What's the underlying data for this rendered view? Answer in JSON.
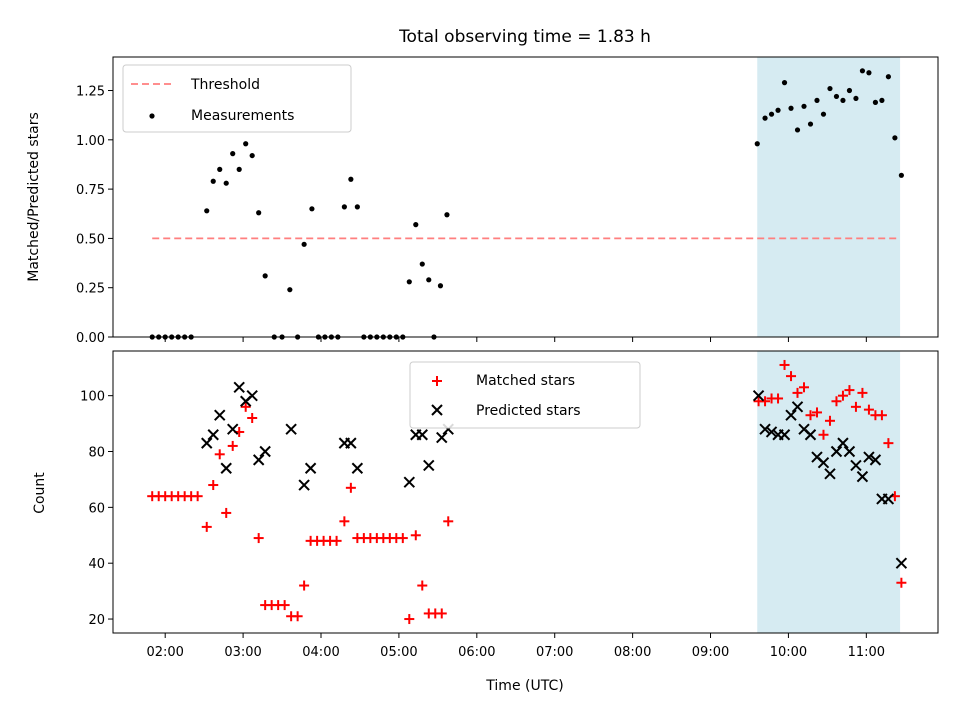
{
  "chart_data": [
    {
      "type": "scatter",
      "title": "Total observing time = 1.83 h",
      "xlabel": "",
      "ylabel": "Matched/Predicted stars",
      "ylim": [
        0.0,
        1.42
      ],
      "yticks": [
        "0.00",
        "0.25",
        "0.50",
        "0.75",
        "1.00",
        "1.25"
      ],
      "xlim_hours": [
        1.33,
        11.92
      ],
      "highlight_span": {
        "x_start": "09:36",
        "x_end": "11:26",
        "color": "#add8e6"
      },
      "threshold": {
        "name": "Threshold",
        "value": 0.5,
        "x_start": "01:50",
        "x_end": "11:26",
        "color": "#ff7f7f"
      },
      "legend": [
        "Threshold",
        "Measurements"
      ],
      "legend_position": "upper left",
      "series": [
        {
          "name": "Measurements",
          "color": "#000000",
          "points": [
            [
              "01:50",
              0.0
            ],
            [
              "01:55",
              0.0
            ],
            [
              "02:00",
              0.0
            ],
            [
              "02:05",
              0.0
            ],
            [
              "02:10",
              0.0
            ],
            [
              "02:15",
              0.0
            ],
            [
              "02:20",
              0.0
            ],
            [
              "02:32",
              0.64
            ],
            [
              "02:37",
              0.79
            ],
            [
              "02:42",
              0.85
            ],
            [
              "02:47",
              0.78
            ],
            [
              "02:52",
              0.93
            ],
            [
              "02:57",
              0.85
            ],
            [
              "03:02",
              0.98
            ],
            [
              "03:07",
              0.92
            ],
            [
              "03:12",
              0.63
            ],
            [
              "03:17",
              0.31
            ],
            [
              "03:24",
              0.0
            ],
            [
              "03:30",
              0.0
            ],
            [
              "03:36",
              0.24
            ],
            [
              "03:42",
              0.0
            ],
            [
              "03:47",
              0.47
            ],
            [
              "03:53",
              0.65
            ],
            [
              "03:58",
              0.0
            ],
            [
              "04:03",
              0.0
            ],
            [
              "04:08",
              0.0
            ],
            [
              "04:13",
              0.0
            ],
            [
              "04:18",
              0.66
            ],
            [
              "04:23",
              0.8
            ],
            [
              "04:28",
              0.66
            ],
            [
              "04:33",
              0.0
            ],
            [
              "04:38",
              0.0
            ],
            [
              "04:43",
              0.0
            ],
            [
              "04:48",
              0.0
            ],
            [
              "04:53",
              0.0
            ],
            [
              "04:58",
              0.0
            ],
            [
              "05:03",
              0.0
            ],
            [
              "05:08",
              0.28
            ],
            [
              "05:13",
              0.57
            ],
            [
              "05:18",
              0.37
            ],
            [
              "05:23",
              0.29
            ],
            [
              "05:27",
              0.0
            ],
            [
              "05:32",
              0.26
            ],
            [
              "05:37",
              0.62
            ],
            [
              "09:36",
              0.98
            ],
            [
              "09:42",
              1.11
            ],
            [
              "09:47",
              1.13
            ],
            [
              "09:52",
              1.15
            ],
            [
              "09:57",
              1.29
            ],
            [
              "10:02",
              1.16
            ],
            [
              "10:07",
              1.05
            ],
            [
              "10:12",
              1.17
            ],
            [
              "10:17",
              1.08
            ],
            [
              "10:22",
              1.2
            ],
            [
              "10:27",
              1.13
            ],
            [
              "10:32",
              1.26
            ],
            [
              "10:37",
              1.22
            ],
            [
              "10:42",
              1.2
            ],
            [
              "10:47",
              1.25
            ],
            [
              "10:52",
              1.21
            ],
            [
              "10:57",
              1.35
            ],
            [
              "11:02",
              1.34
            ],
            [
              "11:07",
              1.19
            ],
            [
              "11:12",
              1.2
            ],
            [
              "11:17",
              1.32
            ],
            [
              "11:22",
              1.01
            ],
            [
              "11:27",
              0.82
            ]
          ]
        }
      ]
    },
    {
      "type": "scatter",
      "title": "",
      "xlabel": "Time (UTC)",
      "ylabel": "Count",
      "ylim": [
        15,
        116
      ],
      "yticks": [
        "20",
        "40",
        "60",
        "80",
        "100"
      ],
      "xticks": [
        "02:00",
        "03:00",
        "04:00",
        "05:00",
        "06:00",
        "07:00",
        "08:00",
        "09:00",
        "10:00",
        "11:00"
      ],
      "xlim_hours": [
        1.33,
        11.92
      ],
      "highlight_span": {
        "x_start": "09:36",
        "x_end": "11:26",
        "color": "#add8e6"
      },
      "legend": [
        "Matched stars",
        "Predicted stars"
      ],
      "legend_position": "upper center",
      "series": [
        {
          "name": "Matched stars",
          "marker": "plus",
          "color": "#ff0000",
          "points": [
            [
              "01:50",
              64
            ],
            [
              "01:55",
              64
            ],
            [
              "02:00",
              64
            ],
            [
              "02:05",
              64
            ],
            [
              "02:10",
              64
            ],
            [
              "02:15",
              64
            ],
            [
              "02:20",
              64
            ],
            [
              "02:25",
              64
            ],
            [
              "02:32",
              53
            ],
            [
              "02:37",
              68
            ],
            [
              "02:42",
              79
            ],
            [
              "02:47",
              58
            ],
            [
              "02:52",
              82
            ],
            [
              "02:57",
              87
            ],
            [
              "03:02",
              96
            ],
            [
              "03:07",
              92
            ],
            [
              "03:12",
              49
            ],
            [
              "03:17",
              25
            ],
            [
              "03:22",
              25
            ],
            [
              "03:27",
              25
            ],
            [
              "03:32",
              25
            ],
            [
              "03:37",
              21
            ],
            [
              "03:42",
              21
            ],
            [
              "03:47",
              32
            ],
            [
              "03:52",
              48
            ],
            [
              "03:57",
              48
            ],
            [
              "04:02",
              48
            ],
            [
              "04:07",
              48
            ],
            [
              "04:12",
              48
            ],
            [
              "04:18",
              55
            ],
            [
              "04:23",
              67
            ],
            [
              "04:28",
              49
            ],
            [
              "04:33",
              49
            ],
            [
              "04:38",
              49
            ],
            [
              "04:43",
              49
            ],
            [
              "04:48",
              49
            ],
            [
              "04:53",
              49
            ],
            [
              "04:58",
              49
            ],
            [
              "05:03",
              49
            ],
            [
              "05:08",
              20
            ],
            [
              "05:13",
              50
            ],
            [
              "05:18",
              32
            ],
            [
              "05:23",
              22
            ],
            [
              "05:28",
              22
            ],
            [
              "05:33",
              22
            ],
            [
              "05:38",
              55
            ],
            [
              "09:37",
              98
            ],
            [
              "09:42",
              98
            ],
            [
              "09:47",
              99
            ],
            [
              "09:52",
              99
            ],
            [
              "09:57",
              111
            ],
            [
              "10:02",
              107
            ],
            [
              "10:07",
              101
            ],
            [
              "10:12",
              103
            ],
            [
              "10:17",
              93
            ],
            [
              "10:22",
              94
            ],
            [
              "10:27",
              86
            ],
            [
              "10:32",
              91
            ],
            [
              "10:37",
              98
            ],
            [
              "10:42",
              100
            ],
            [
              "10:47",
              102
            ],
            [
              "10:52",
              96
            ],
            [
              "10:57",
              101
            ],
            [
              "11:02",
              95
            ],
            [
              "11:07",
              93
            ],
            [
              "11:12",
              93
            ],
            [
              "11:17",
              83
            ],
            [
              "11:22",
              64
            ],
            [
              "11:27",
              33
            ]
          ]
        },
        {
          "name": "Predicted stars",
          "marker": "cross",
          "color": "#000000",
          "points": [
            [
              "02:32",
              83
            ],
            [
              "02:37",
              86
            ],
            [
              "02:42",
              93
            ],
            [
              "02:47",
              74
            ],
            [
              "02:52",
              88
            ],
            [
              "02:57",
              103
            ],
            [
              "03:02",
              98
            ],
            [
              "03:07",
              100
            ],
            [
              "03:12",
              77
            ],
            [
              "03:17",
              80
            ],
            [
              "03:37",
              88
            ],
            [
              "03:47",
              68
            ],
            [
              "03:52",
              74
            ],
            [
              "04:18",
              83
            ],
            [
              "04:23",
              83
            ],
            [
              "04:28",
              74
            ],
            [
              "05:08",
              69
            ],
            [
              "05:13",
              86
            ],
            [
              "05:18",
              86
            ],
            [
              "05:23",
              75
            ],
            [
              "05:33",
              85
            ],
            [
              "05:38",
              88
            ],
            [
              "09:37",
              100
            ],
            [
              "09:42",
              88
            ],
            [
              "09:47",
              87
            ],
            [
              "09:52",
              86
            ],
            [
              "09:57",
              86
            ],
            [
              "10:02",
              93
            ],
            [
              "10:07",
              96
            ],
            [
              "10:12",
              88
            ],
            [
              "10:17",
              86
            ],
            [
              "10:22",
              78
            ],
            [
              "10:27",
              76
            ],
            [
              "10:32",
              72
            ],
            [
              "10:37",
              80
            ],
            [
              "10:42",
              83
            ],
            [
              "10:47",
              80
            ],
            [
              "10:52",
              75
            ],
            [
              "10:57",
              71
            ],
            [
              "11:02",
              78
            ],
            [
              "11:07",
              77
            ],
            [
              "11:12",
              63
            ],
            [
              "11:17",
              63
            ],
            [
              "11:27",
              40
            ]
          ]
        }
      ]
    }
  ]
}
